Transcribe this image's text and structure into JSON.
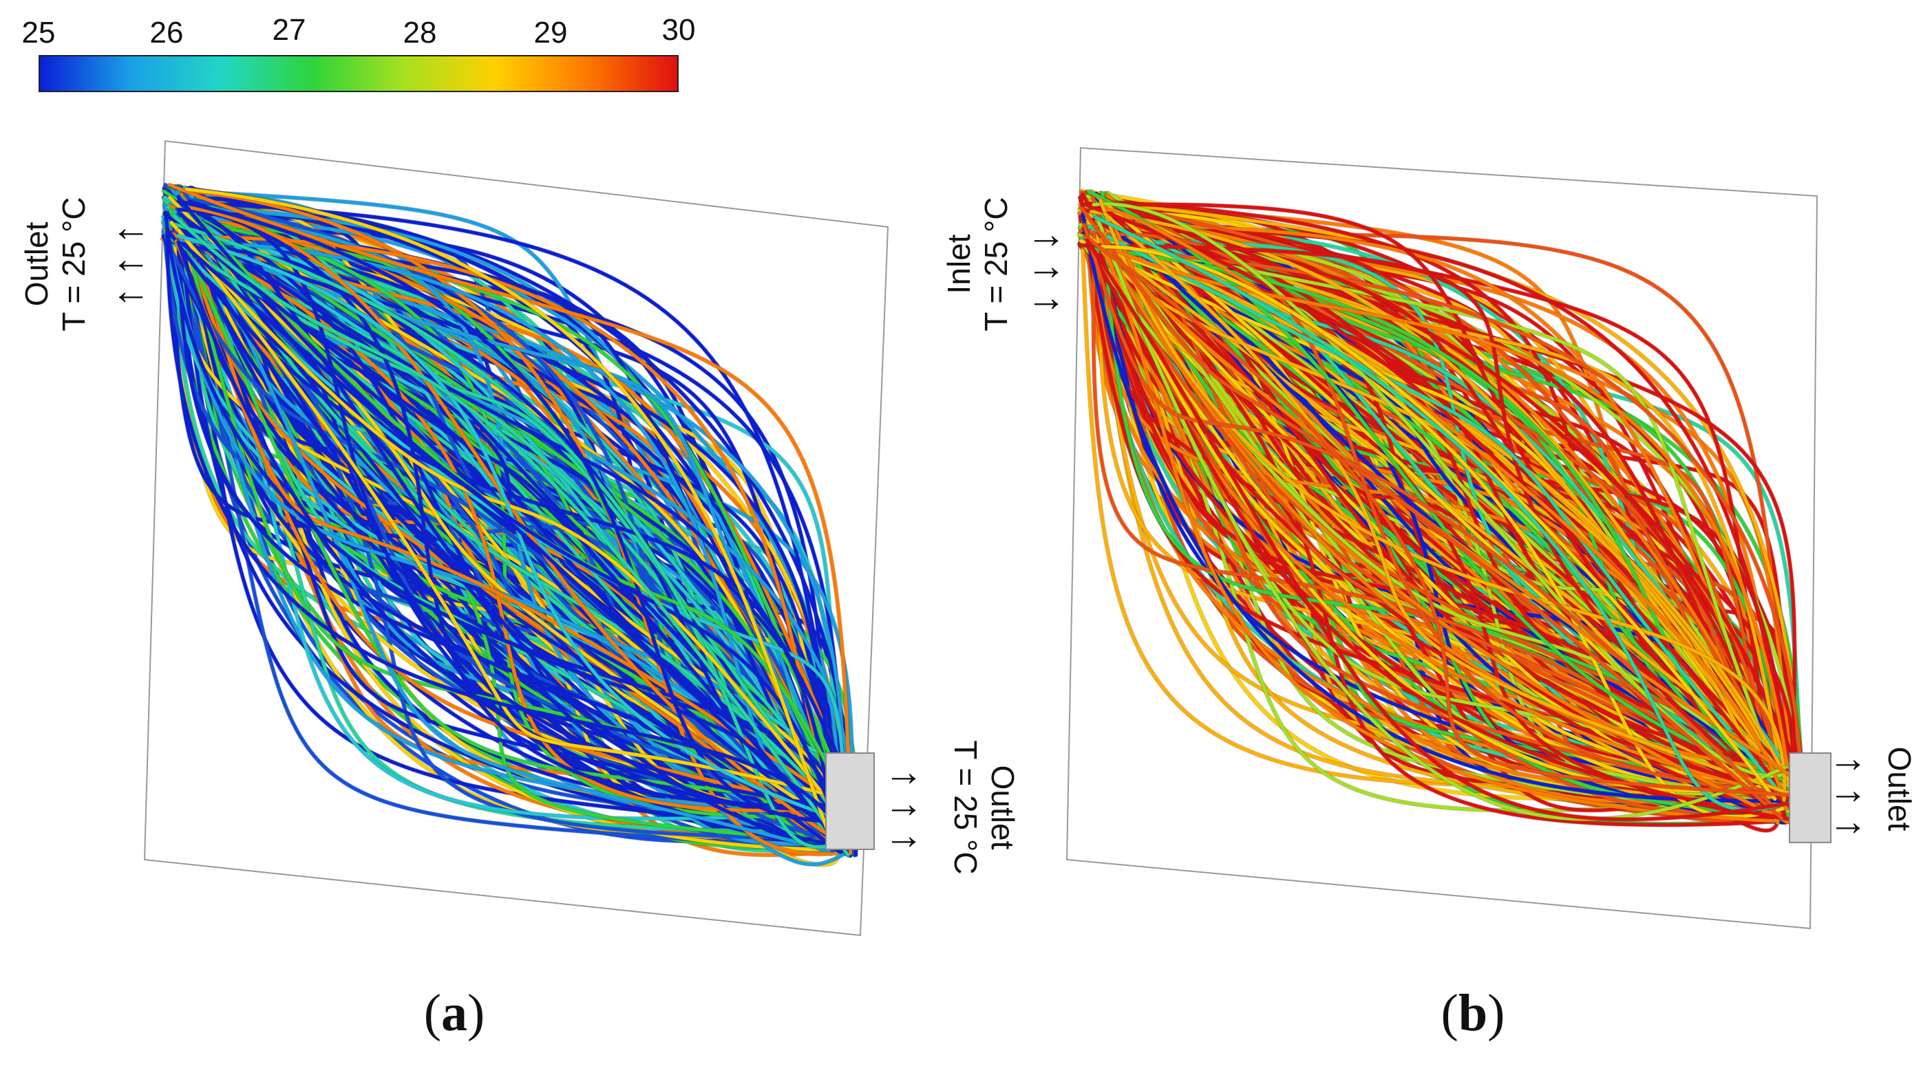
{
  "colorbar": {
    "ticks": [
      "25",
      "26",
      "27",
      "28",
      "29",
      "30"
    ],
    "colors": [
      "#0a1fd8",
      "#1aa0e6",
      "#22d6c4",
      "#2fd43a",
      "#a6e020",
      "#ffd000",
      "#ff7a00",
      "#e01010"
    ]
  },
  "panel_a": {
    "label_letter": "a",
    "left_label": {
      "line1": "Outlet",
      "line2": "T = 25 °C"
    },
    "right_label": {
      "line1": "Outlet",
      "line2": "T = 25 °C"
    },
    "left_arrows": [
      "←",
      "←",
      "←"
    ],
    "right_arrows": [
      "→",
      "→",
      "→"
    ]
  },
  "panel_b": {
    "label_letter": "b",
    "left_label": {
      "line1": "Inlet",
      "line2": "T = 25 °C"
    },
    "right_label": {
      "line1": "Outlet"
    },
    "left_arrows": [
      "→",
      "→",
      "→"
    ],
    "right_arrows": [
      "→",
      "→",
      "→"
    ]
  }
}
